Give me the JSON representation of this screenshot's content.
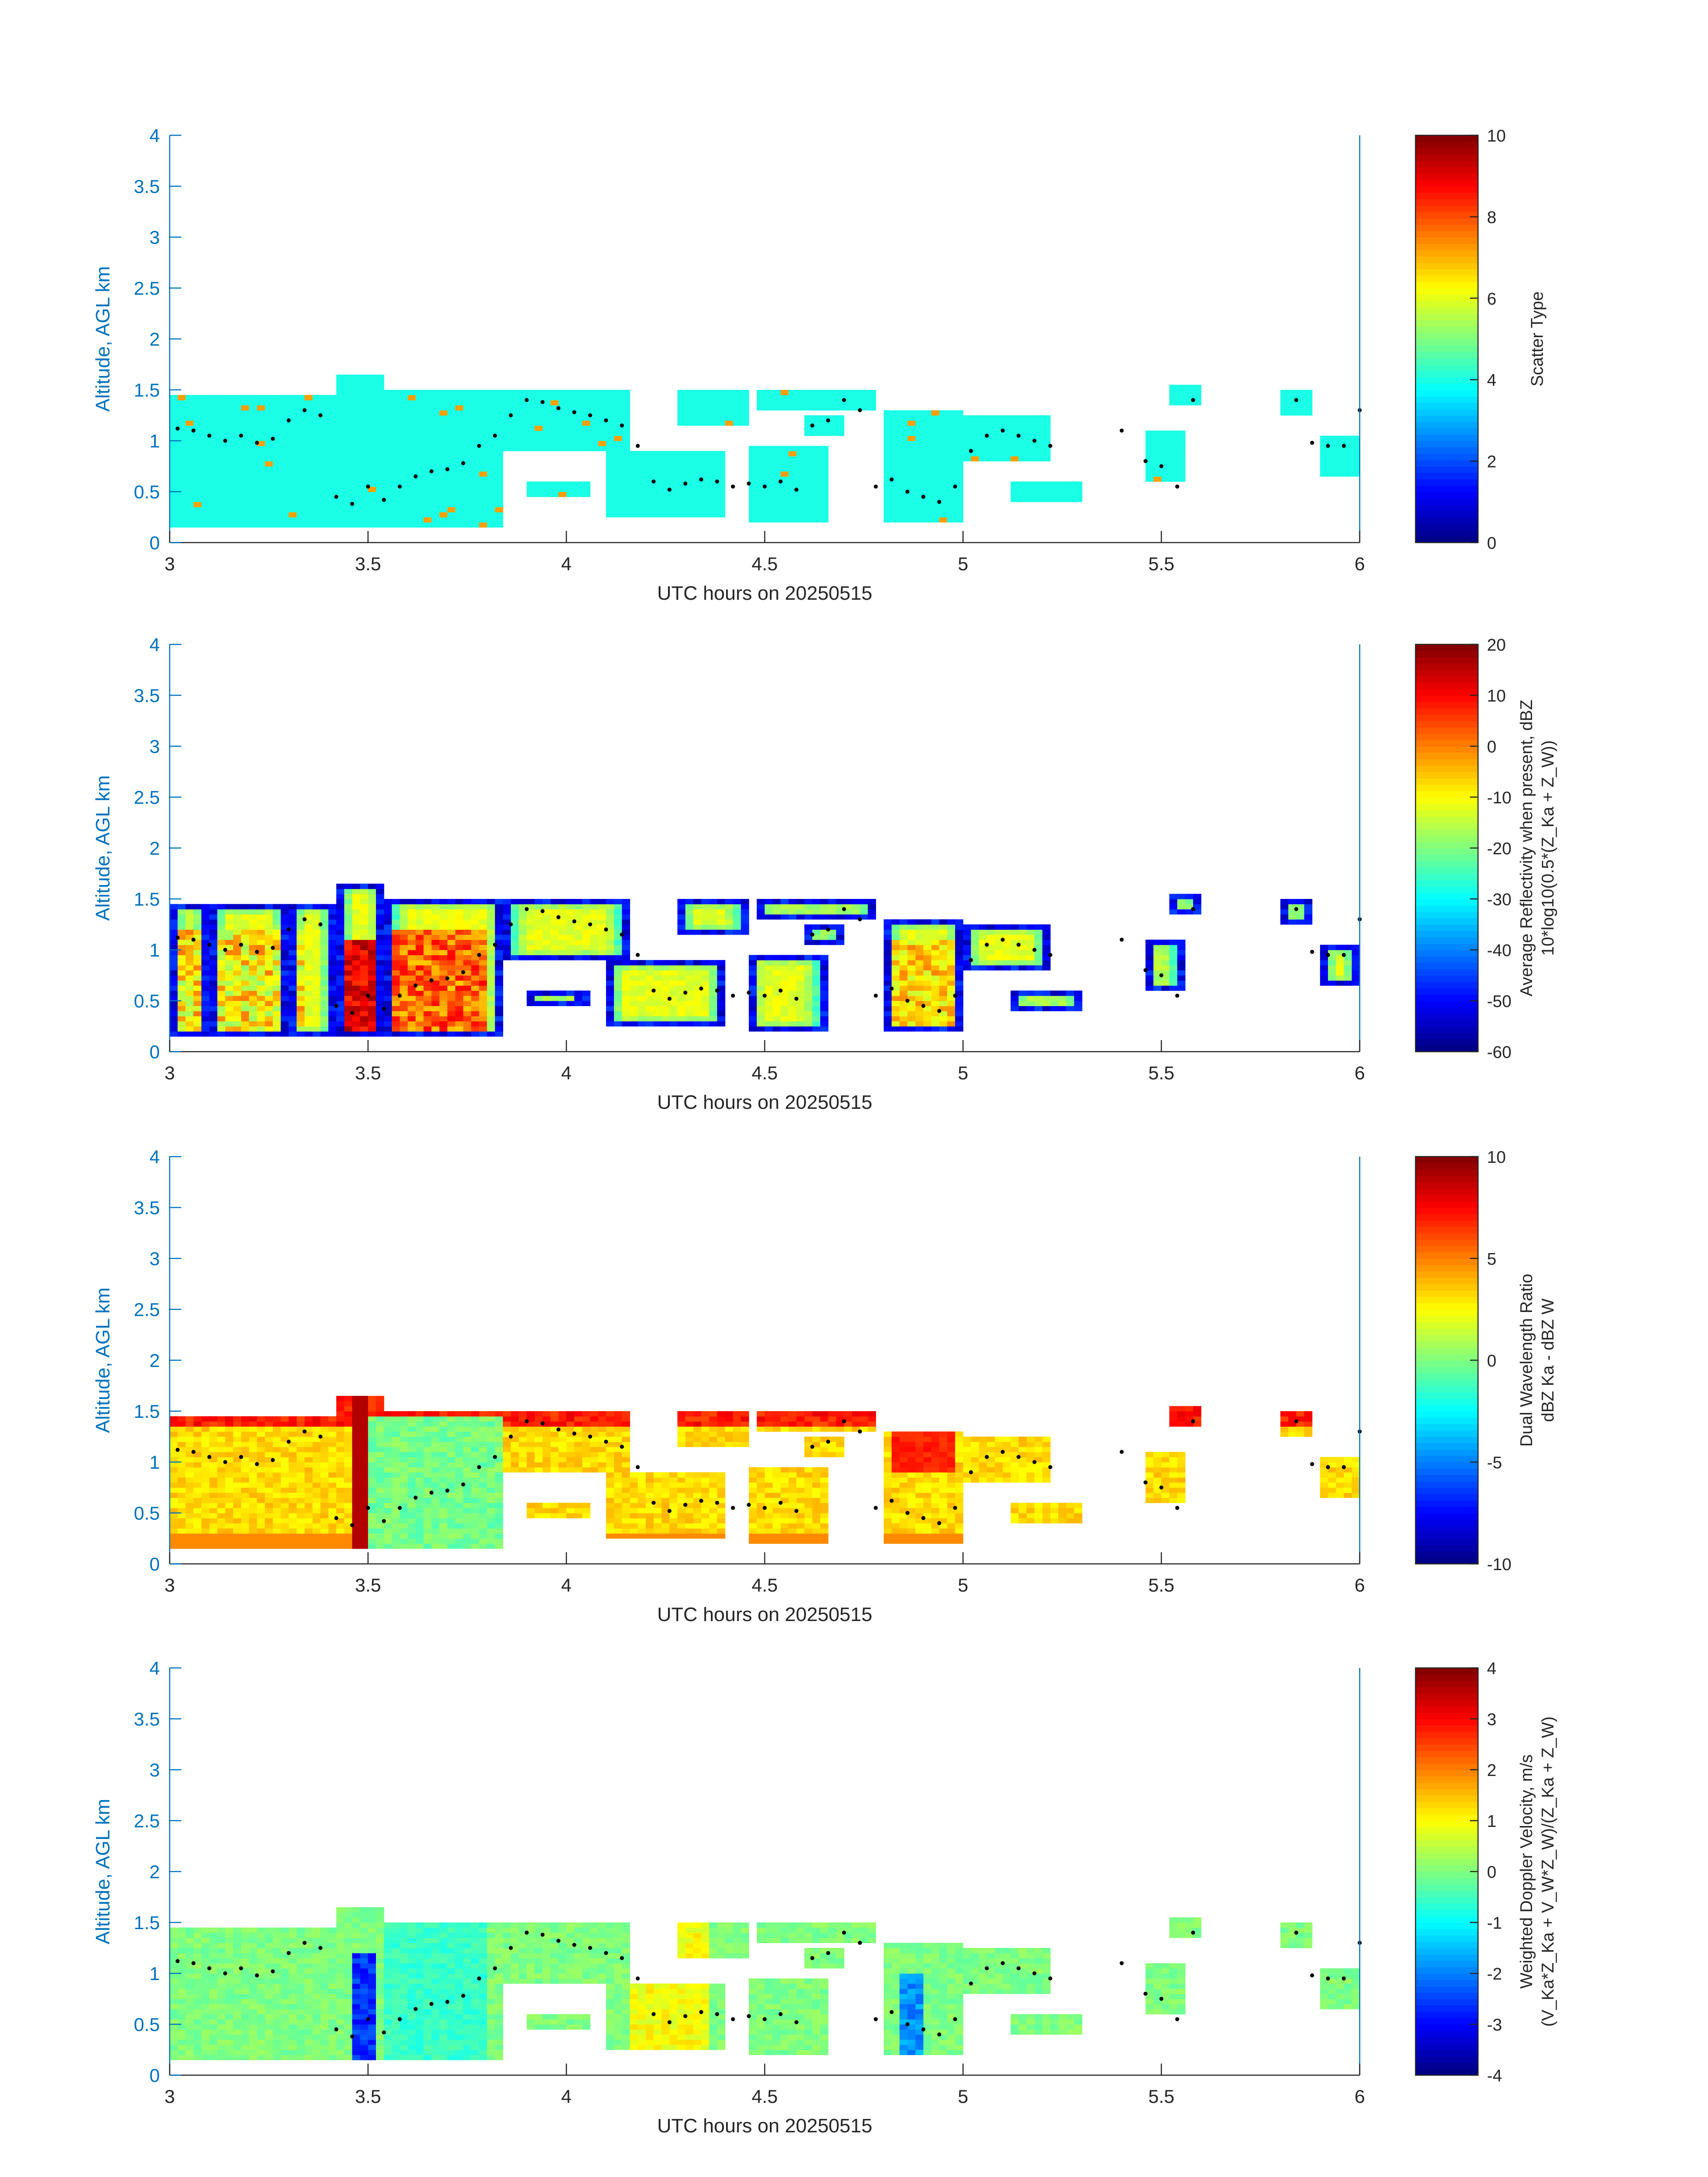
{
  "figure": {
    "panels": [
      {
        "id": "scatter-type",
        "ylabel": "Altitude, AGL km",
        "xlabel": "UTC hours on 20250515",
        "cbar_label": [
          "Scatter Type"
        ],
        "cbar_ticks": [
          "0",
          "2",
          "4",
          "6",
          "8",
          "10"
        ],
        "cmin": 0,
        "cmax": 10,
        "variant": "type"
      },
      {
        "id": "reflectivity",
        "ylabel": "Altitude, AGL km",
        "xlabel": "UTC hours on 20250515",
        "cbar_label": [
          "Average Reflectivity when present, dBZ",
          "10*log10(0.5*(Z_Ka + Z_W))"
        ],
        "cbar_ticks": [
          "-60",
          "-50",
          "-40",
          "-30",
          "-20",
          "-10",
          "0",
          "10",
          "20"
        ],
        "cmin": -60,
        "cmax": 20,
        "variant": "refl"
      },
      {
        "id": "dual-wavelength-ratio",
        "ylabel": "Altitude, AGL km",
        "xlabel": "UTC hours on 20250515",
        "cbar_label": [
          "Dual Wavelength Ratio",
          "dBZ Ka - dBZ W"
        ],
        "cbar_ticks": [
          "-10",
          "-5",
          "0",
          "5",
          "10"
        ],
        "cmin": -10,
        "cmax": 10,
        "variant": "dwr"
      },
      {
        "id": "doppler-velocity",
        "ylabel": "Altitude, AGL km",
        "xlabel": "UTC hours on 20250515",
        "cbar_label": [
          "Weighted Doppler Velocity, m/s",
          "(V_Ka*Z_Ka + V_W*Z_W)/(Z_Ka + Z_W)"
        ],
        "cbar_ticks": [
          "-4",
          "-3",
          "-2",
          "-1",
          "0",
          "1",
          "2",
          "3",
          "4"
        ],
        "cmin": -4,
        "cmax": 4,
        "variant": "vel"
      }
    ]
  },
  "chart_data": {
    "type": "heatmap",
    "x_label": "UTC hours on 20250515",
    "y_label": "Altitude, AGL km",
    "xlim": [
      3,
      6
    ],
    "ylim": [
      0,
      4
    ],
    "x_ticks": [
      "3",
      "3.5",
      "4",
      "4.5",
      "5",
      "5.5",
      "6"
    ],
    "y_ticks": [
      "0",
      "0.5",
      "1",
      "1.5",
      "2",
      "2.5",
      "3",
      "3.5",
      "4"
    ],
    "colormap": "jet",
    "grid": false,
    "echo_regions": [
      {
        "t0": 3.0,
        "t1": 3.1,
        "z0": 0.15,
        "z1": 1.45
      },
      {
        "t0": 3.1,
        "t1": 3.3,
        "z0": 0.15,
        "z1": 1.45
      },
      {
        "t0": 3.3,
        "t1": 3.42,
        "z0": 0.15,
        "z1": 1.45
      },
      {
        "t0": 3.42,
        "t1": 3.55,
        "z0": 0.15,
        "z1": 1.65
      },
      {
        "t0": 3.55,
        "t1": 3.85,
        "z0": 0.15,
        "z1": 1.5
      },
      {
        "t0": 3.85,
        "t1": 4.15,
        "z0": 0.9,
        "z1": 1.5
      },
      {
        "t0": 3.9,
        "t1": 4.05,
        "z0": 0.45,
        "z1": 0.6
      },
      {
        "t0": 4.1,
        "t1": 4.4,
        "z0": 0.25,
        "z1": 0.9
      },
      {
        "t0": 4.28,
        "t1": 4.45,
        "z0": 1.15,
        "z1": 1.5
      },
      {
        "t0": 4.45,
        "t1": 4.65,
        "z0": 0.2,
        "z1": 0.95
      },
      {
        "t0": 4.48,
        "t1": 4.78,
        "z0": 1.3,
        "z1": 1.5
      },
      {
        "t0": 4.6,
        "t1": 4.7,
        "z0": 1.05,
        "z1": 1.25
      },
      {
        "t0": 4.8,
        "t1": 5.0,
        "z0": 0.2,
        "z1": 1.3
      },
      {
        "t0": 5.0,
        "t1": 5.22,
        "z0": 0.8,
        "z1": 1.25
      },
      {
        "t0": 5.12,
        "t1": 5.3,
        "z0": 0.4,
        "z1": 0.6
      },
      {
        "t0": 5.45,
        "t1": 5.55,
        "z0": 0.6,
        "z1": 1.1
      },
      {
        "t0": 5.52,
        "t1": 5.6,
        "z0": 1.35,
        "z1": 1.55
      },
      {
        "t0": 5.9,
        "t1": 6.0,
        "z0": 0.65,
        "z1": 1.05
      },
      {
        "t0": 5.8,
        "t1": 5.88,
        "z0": 1.25,
        "z1": 1.5
      }
    ],
    "cloud_base_markers": {
      "t": [
        3.02,
        3.06,
        3.1,
        3.14,
        3.18,
        3.22,
        3.26,
        3.3,
        3.34,
        3.38,
        3.42,
        3.46,
        3.5,
        3.54,
        3.58,
        3.62,
        3.66,
        3.7,
        3.74,
        3.78,
        3.82,
        3.86,
        3.9,
        3.94,
        3.98,
        4.02,
        4.06,
        4.1,
        4.14,
        4.18,
        4.22,
        4.26,
        4.3,
        4.34,
        4.38,
        4.42,
        4.46,
        4.5,
        4.54,
        4.58,
        4.62,
        4.66,
        4.7,
        4.74,
        4.78,
        4.82,
        4.86,
        4.9,
        4.94,
        4.98,
        5.02,
        5.06,
        5.1,
        5.14,
        5.18,
        5.22,
        5.4,
        5.46,
        5.5,
        5.54,
        5.58,
        5.84,
        5.88,
        5.92,
        5.96,
        6.0
      ],
      "z": [
        1.12,
        1.1,
        1.05,
        1.0,
        1.05,
        0.98,
        1.02,
        1.2,
        1.3,
        1.25,
        0.45,
        0.38,
        0.55,
        0.42,
        0.55,
        0.65,
        0.7,
        0.72,
        0.78,
        0.95,
        1.05,
        1.25,
        1.4,
        1.38,
        1.32,
        1.28,
        1.25,
        1.2,
        1.15,
        0.95,
        0.6,
        0.52,
        0.58,
        0.62,
        0.6,
        0.55,
        0.58,
        0.55,
        0.6,
        0.52,
        1.15,
        1.2,
        1.4,
        1.3,
        0.55,
        0.62,
        0.5,
        0.45,
        0.4,
        0.55,
        0.9,
        1.05,
        1.1,
        1.05,
        1.0,
        0.95,
        1.1,
        0.8,
        0.75,
        0.55,
        1.4,
        1.4,
        0.98,
        0.95,
        0.95,
        1.3
      ]
    }
  }
}
